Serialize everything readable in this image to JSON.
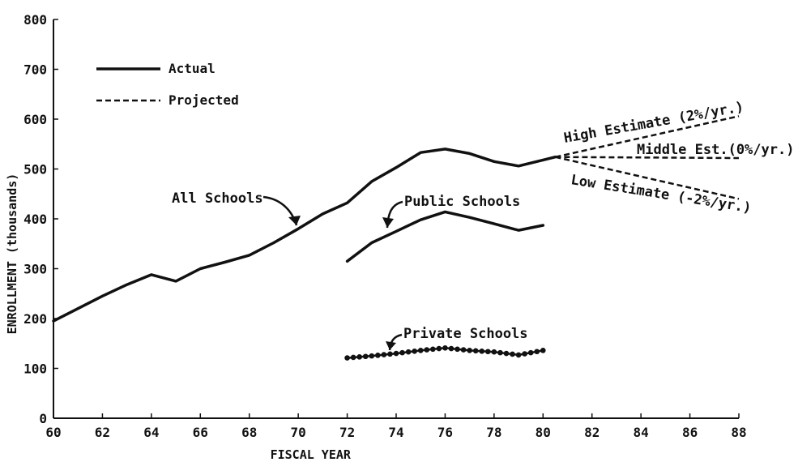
{
  "chart_data": {
    "type": "line",
    "title": "",
    "xlabel": "FISCAL YEAR",
    "ylabel": "ENROLLMENT (thousands)",
    "xlim": [
      60,
      88
    ],
    "ylim": [
      0,
      800
    ],
    "x_ticks": [
      "60",
      "62",
      "64",
      "66",
      "68",
      "70",
      "72",
      "74",
      "76",
      "78",
      "80",
      "82",
      "84",
      "86",
      "88"
    ],
    "y_ticks": [
      "0",
      "100",
      "200",
      "300",
      "400",
      "500",
      "600",
      "700",
      "800"
    ],
    "grid": false,
    "legend": {
      "placement": "top-left",
      "entries": [
        {
          "label": "Actual",
          "style": "solid"
        },
        {
          "label": "Projected",
          "style": "dashed"
        }
      ]
    },
    "series": [
      {
        "name": "All Schools",
        "style": "solid",
        "x": [
          60,
          61,
          62,
          63,
          64,
          65,
          66,
          67,
          68,
          69,
          70,
          71,
          72,
          73,
          74,
          75,
          76,
          77,
          78,
          79,
          80,
          80.5
        ],
        "y": [
          195,
          220,
          245,
          268,
          288,
          275,
          300,
          313,
          327,
          352,
          380,
          410,
          432,
          475,
          503,
          533,
          540,
          531,
          515,
          506,
          518,
          524
        ]
      },
      {
        "name": "Public Schools",
        "style": "solid",
        "x": [
          72,
          73,
          74,
          75,
          76,
          77,
          78,
          79,
          80
        ],
        "y": [
          315,
          352,
          375,
          398,
          414,
          403,
          390,
          377,
          387
        ]
      },
      {
        "name": "Private Schools",
        "style": "beaded",
        "x": [
          72,
          73,
          74,
          75,
          76,
          77,
          78,
          79,
          80
        ],
        "y": [
          121,
          125,
          130,
          136,
          141,
          136,
          133,
          127,
          136
        ]
      },
      {
        "name": "High Estimate (2%/yr.)",
        "style": "dashed",
        "x": [
          80.5,
          88
        ],
        "y": [
          524,
          606
        ]
      },
      {
        "name": "Middle Est.(0%/yr.)",
        "style": "dashed",
        "x": [
          80.5,
          88
        ],
        "y": [
          524,
          522
        ]
      },
      {
        "name": "Low Estimate (-2%/yr.)",
        "style": "dashed",
        "x": [
          80.5,
          88
        ],
        "y": [
          524,
          440
        ]
      }
    ],
    "annotations": [
      {
        "text": "All Schools",
        "target_series": "All Schools"
      },
      {
        "text": "Public Schools",
        "target_series": "Public Schools"
      },
      {
        "text": "Private Schools",
        "target_series": "Private Schools"
      },
      {
        "text": "High Estimate (2%/yr.)",
        "target_series": "High Estimate (2%/yr.)"
      },
      {
        "text": "Middle Est.(0%/yr.)",
        "target_series": "Middle Est.(0%/yr.)"
      },
      {
        "text": "Low Estimate (-2%/yr.)",
        "target_series": "Low Estimate (-2%/yr.)"
      }
    ]
  }
}
